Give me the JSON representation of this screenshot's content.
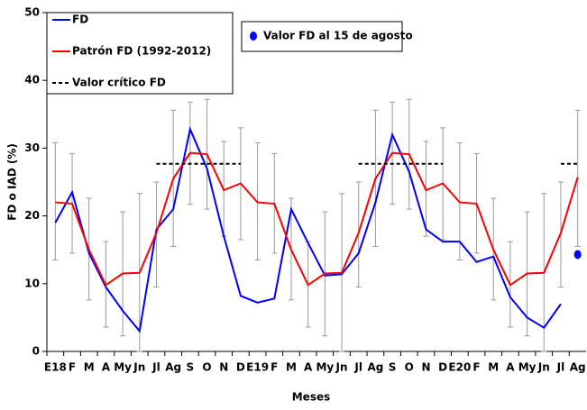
{
  "chart_data": {
    "type": "line",
    "ylabel": "FD o IAD (%)",
    "xlabel": "Meses",
    "categories": [
      "E18",
      "F",
      "M",
      "A",
      "My",
      "Jn",
      "Jl",
      "Ag",
      "S",
      "O",
      "N",
      "D",
      "E19",
      "F",
      "M",
      "A",
      "My",
      "Jn",
      "Jl",
      "Ag",
      "S",
      "O",
      "N",
      "D",
      "E20",
      "F",
      "M",
      "A",
      "My",
      "Jn",
      "Jl",
      "Ag"
    ],
    "ylim": [
      0,
      50
    ],
    "yticks": [
      0,
      10,
      20,
      30,
      40,
      50
    ],
    "series": [
      {
        "name": "FD",
        "color": "#0000ff",
        "style": "solid",
        "values": [
          19,
          23.5,
          14.5,
          9.5,
          6,
          3,
          18,
          21,
          32.8,
          27,
          17,
          8.2,
          7.2,
          7.8,
          21,
          16,
          11.2,
          11.4,
          14.5,
          22,
          32,
          26.5,
          18,
          16.2,
          16.2,
          13.2,
          14,
          8,
          5,
          3.5,
          7,
          null
        ]
      },
      {
        "name": "Patrón FD (1992-2012)",
        "color": "#ff0000",
        "style": "solid",
        "values": [
          22,
          21.8,
          15,
          9.8,
          11.5,
          11.6,
          17.5,
          25.5,
          29.3,
          29.1,
          23.8,
          24.8,
          22,
          21.8,
          15,
          9.8,
          11.5,
          11.6,
          17.5,
          25.5,
          29.3,
          29.1,
          23.8,
          24.8,
          22,
          21.8,
          15,
          9.8,
          11.5,
          11.6,
          17.5,
          25.7
        ],
        "error_low": [
          13.5,
          14.5,
          7.6,
          3.6,
          2.3,
          0,
          9.5,
          15.5,
          21.7,
          21,
          17,
          16.5,
          13.5,
          14.5,
          7.6,
          3.6,
          2.3,
          0,
          9.5,
          15.5,
          21.7,
          21,
          17,
          16.5,
          13.5,
          14.5,
          7.6,
          3.6,
          2.3,
          0,
          9.5,
          15.5
        ],
        "error_high": [
          30.8,
          29.2,
          22.6,
          16.2,
          20.6,
          23.3,
          25,
          35.6,
          36.8,
          37.2,
          31,
          33,
          30.8,
          29.2,
          22.6,
          16.2,
          20.6,
          23.3,
          25,
          35.6,
          36.8,
          37.2,
          31,
          33,
          30.8,
          29.2,
          22.6,
          16.2,
          20.6,
          23.3,
          25,
          35.6
        ]
      },
      {
        "name": "Valor crítico FD",
        "color": "#000000",
        "style": "dashed",
        "values": [
          null,
          null,
          null,
          null,
          null,
          null,
          27.7,
          27.7,
          27.7,
          27.7,
          27.7,
          27.7,
          null,
          null,
          null,
          null,
          null,
          null,
          27.7,
          27.7,
          27.7,
          27.7,
          27.7,
          27.7,
          null,
          null,
          null,
          null,
          null,
          null,
          27.7,
          27.7
        ]
      },
      {
        "name": "Valor FD al 15 de agosto",
        "color": "#0000ff",
        "style": "marker",
        "values": [
          null,
          null,
          null,
          null,
          null,
          null,
          null,
          null,
          null,
          null,
          null,
          null,
          null,
          null,
          null,
          null,
          null,
          null,
          null,
          null,
          null,
          null,
          null,
          null,
          null,
          null,
          null,
          null,
          null,
          null,
          null,
          14.3
        ]
      }
    ]
  }
}
